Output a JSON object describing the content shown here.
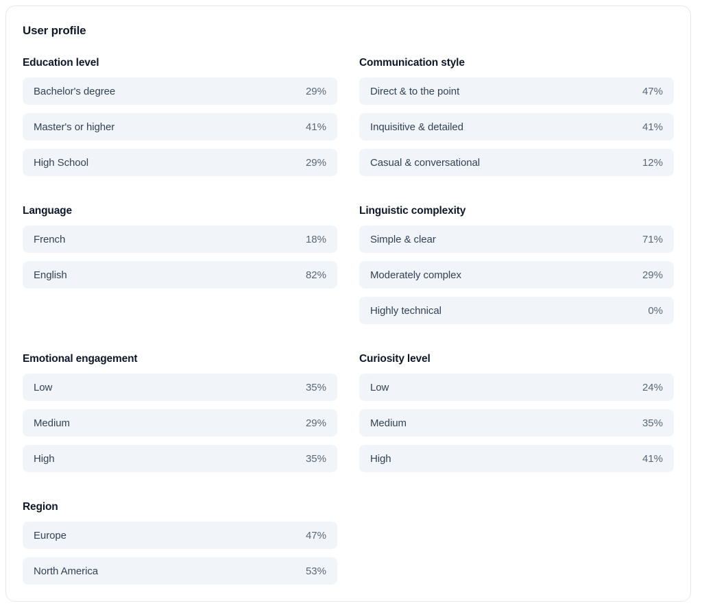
{
  "card": {
    "title": "User profile",
    "sections": [
      {
        "title": "Education level",
        "items": [
          {
            "label": "Bachelor's degree",
            "value": "29%"
          },
          {
            "label": "Master's or higher",
            "value": "41%"
          },
          {
            "label": "High School",
            "value": "29%"
          }
        ]
      },
      {
        "title": "Communication style",
        "items": [
          {
            "label": "Direct & to the point",
            "value": "47%"
          },
          {
            "label": "Inquisitive & detailed",
            "value": "41%"
          },
          {
            "label": "Casual & conversational",
            "value": "12%"
          }
        ]
      },
      {
        "title": "Language",
        "items": [
          {
            "label": "French",
            "value": "18%"
          },
          {
            "label": "English",
            "value": "82%"
          }
        ]
      },
      {
        "title": "Linguistic complexity",
        "items": [
          {
            "label": "Simple & clear",
            "value": "71%"
          },
          {
            "label": "Moderately complex",
            "value": "29%"
          },
          {
            "label": "Highly technical",
            "value": "0%"
          }
        ]
      },
      {
        "title": "Emotional engagement",
        "items": [
          {
            "label": "Low",
            "value": "35%"
          },
          {
            "label": "Medium",
            "value": "29%"
          },
          {
            "label": "High",
            "value": "35%"
          }
        ]
      },
      {
        "title": "Curiosity level",
        "items": [
          {
            "label": "Low",
            "value": "24%"
          },
          {
            "label": "Medium",
            "value": "35%"
          },
          {
            "label": "High",
            "value": "41%"
          }
        ]
      },
      {
        "title": "Region",
        "items": [
          {
            "label": "Europe",
            "value": "47%"
          },
          {
            "label": "North America",
            "value": "53%"
          }
        ]
      }
    ]
  },
  "colors": {
    "card_background": "#ffffff",
    "card_border": "#e3e8ef",
    "row_background": "#f1f5f9",
    "heading_text": "#0f172a",
    "label_text": "#334155",
    "value_text": "#5b6675"
  }
}
